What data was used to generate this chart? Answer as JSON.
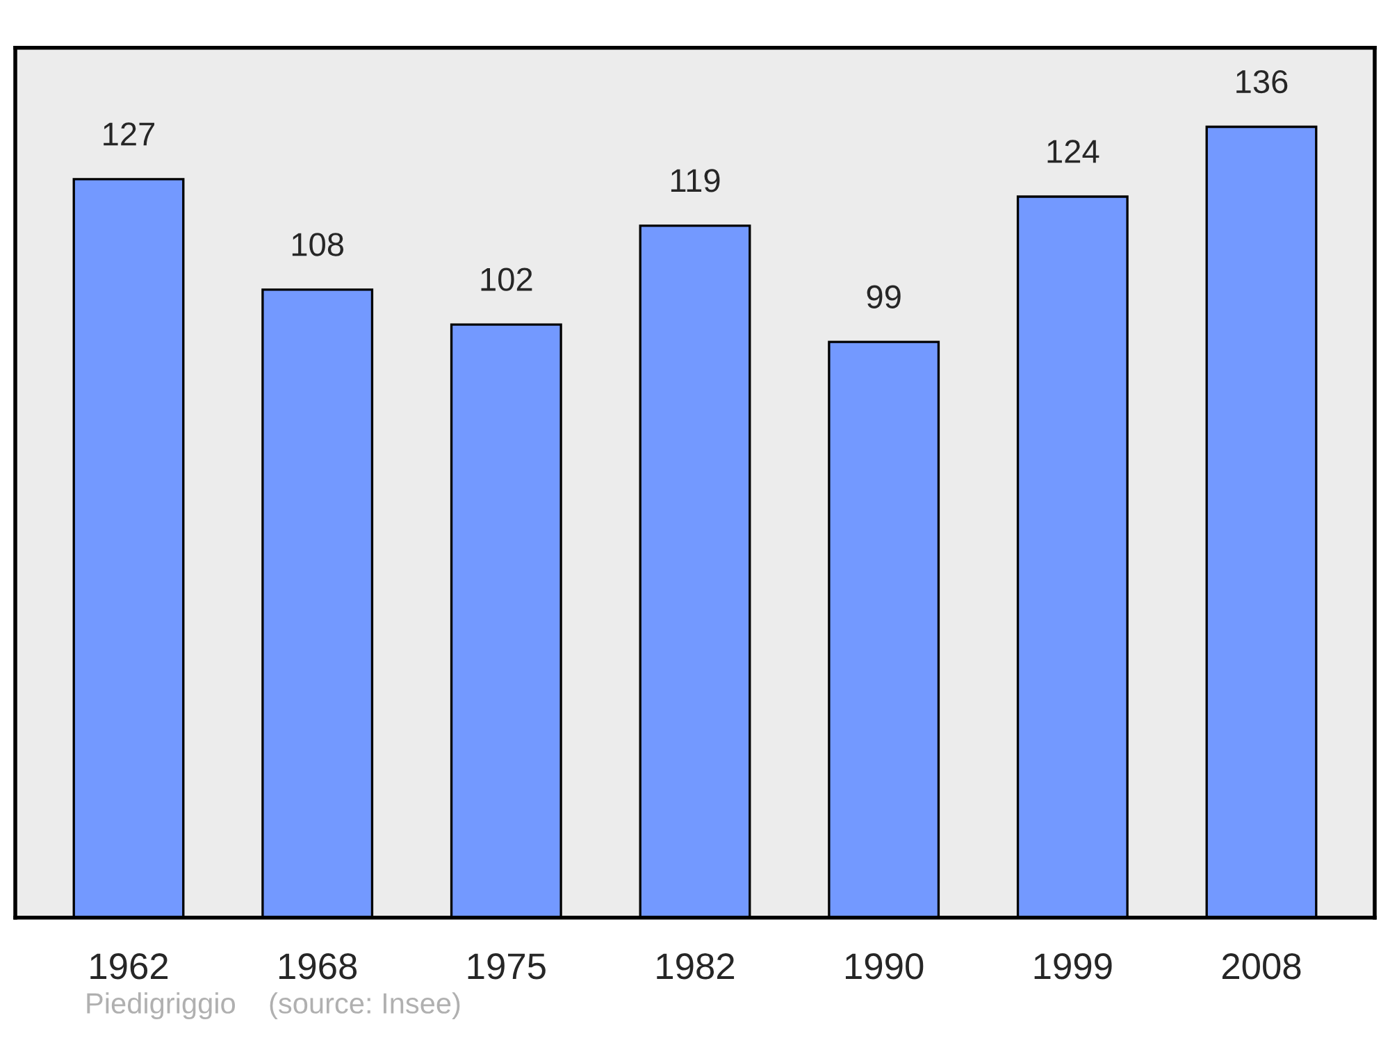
{
  "chart_data": {
    "type": "bar",
    "categories": [
      "1962",
      "1968",
      "1975",
      "1982",
      "1990",
      "1999",
      "2008"
    ],
    "values": [
      127,
      108,
      102,
      119,
      99,
      124,
      136
    ],
    "color": "#7399ff",
    "data_labels": true,
    "grid": false,
    "annotations": [
      "Piedigriggio    (source: Insee)"
    ]
  }
}
